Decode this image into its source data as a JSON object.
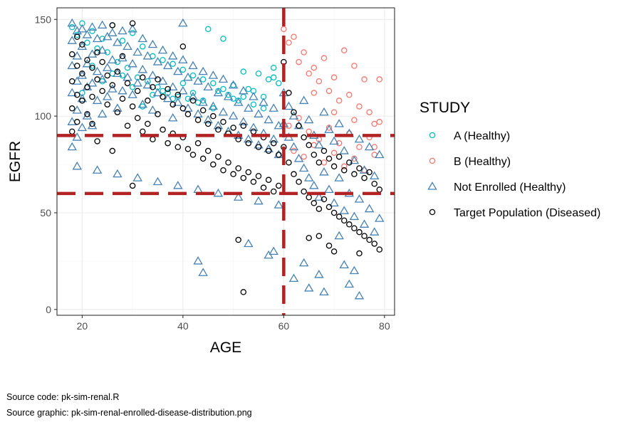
{
  "chart_data": {
    "type": "scatter",
    "title": "",
    "xlabel": "AGE",
    "ylabel": "EGFR",
    "xlim": [
      15,
      82
    ],
    "ylim": [
      -3,
      156
    ],
    "x_ticks": [
      20,
      40,
      60,
      80
    ],
    "y_ticks": [
      0,
      50,
      100,
      150
    ],
    "grid": true,
    "legend": {
      "title": "STUDY",
      "position": "right",
      "entries": [
        {
          "label": "A (Healthy)",
          "marker": "circle",
          "color": "#00BFC4"
        },
        {
          "label": "B (Healthy)",
          "marker": "circle",
          "color": "#F8766D"
        },
        {
          "label": "Not Enrolled (Healthy)",
          "marker": "triangle",
          "color": "#4682B4"
        },
        {
          "label": "Target Population (Diseased)",
          "marker": "circle",
          "color": "#000000"
        }
      ]
    },
    "reference_lines": [
      {
        "orientation": "horizontal",
        "value": 90,
        "style": "dashed",
        "color": "#B22222"
      },
      {
        "orientation": "horizontal",
        "value": 60,
        "style": "dashed",
        "color": "#B22222"
      },
      {
        "orientation": "vertical",
        "value": 60,
        "style": "dashed",
        "color": "#B22222"
      }
    ],
    "series": [
      {
        "name": "A (Healthy)",
        "x": [
          18,
          19,
          20,
          21,
          22,
          23,
          24,
          25,
          26,
          27,
          28,
          29,
          30,
          31,
          32,
          33,
          34,
          35,
          36,
          37,
          38,
          39,
          40,
          41,
          42,
          43,
          44,
          45,
          46,
          47,
          48,
          49,
          50,
          51,
          52,
          53,
          54,
          55,
          56,
          57,
          58,
          59,
          20,
          24,
          28,
          32,
          36,
          40,
          44,
          48,
          52,
          56,
          22,
          26,
          30,
          34,
          38,
          42,
          46,
          50,
          54,
          58
        ],
        "y": [
          146,
          142,
          148,
          138,
          144,
          135,
          140,
          133,
          147,
          128,
          139,
          125,
          143,
          120,
          136,
          118,
          131,
          115,
          129,
          112,
          127,
          110,
          124,
          109,
          121,
          107,
          119,
          145,
          117,
          113,
          140,
          111,
          116,
          108,
          123,
          114,
          106,
          122,
          110,
          119,
          125,
          117,
          112,
          118,
          121,
          105,
          113,
          117,
          108,
          114,
          110,
          104,
          126,
          122,
          115,
          111,
          109,
          112,
          104,
          109,
          113,
          120
        ]
      },
      {
        "name": "B (Healthy)",
        "x": [
          60,
          61,
          62,
          63,
          64,
          65,
          66,
          67,
          68,
          69,
          70,
          71,
          72,
          73,
          74,
          75,
          76,
          77,
          78,
          79,
          61,
          63,
          65,
          67,
          69,
          71,
          73,
          75,
          77,
          79,
          62,
          64,
          66,
          68,
          70,
          72,
          74,
          76,
          78,
          66,
          70,
          74,
          78
        ],
        "y": [
          145,
          138,
          141,
          128,
          133,
          122,
          125,
          118,
          130,
          113,
          120,
          108,
          134,
          111,
          126,
          105,
          119,
          102,
          96,
          119,
          95,
          99,
          92,
          88,
          94,
          86,
          91,
          84,
          89,
          97,
          82,
          79,
          85,
          76,
          81,
          74,
          78,
          72,
          80,
          112,
          102,
          98,
          84
        ]
      },
      {
        "name": "Not Enrolled (Healthy)",
        "x": [
          18,
          18,
          18,
          18,
          18,
          18,
          19,
          19,
          19,
          19,
          19,
          20,
          20,
          20,
          20,
          20,
          21,
          21,
          21,
          21,
          22,
          22,
          22,
          22,
          23,
          23,
          23,
          24,
          24,
          24,
          24,
          25,
          25,
          25,
          26,
          26,
          26,
          27,
          27,
          27,
          28,
          28,
          28,
          29,
          29,
          30,
          30,
          30,
          31,
          31,
          32,
          32,
          32,
          33,
          33,
          34,
          34,
          34,
          35,
          35,
          36,
          36,
          37,
          37,
          38,
          38,
          38,
          39,
          39,
          40,
          40,
          40,
          41,
          41,
          42,
          42,
          43,
          43,
          44,
          44,
          45,
          45,
          46,
          46,
          47,
          47,
          48,
          48,
          49,
          49,
          50,
          50,
          51,
          51,
          52,
          52,
          53,
          53,
          54,
          54,
          55,
          55,
          56,
          56,
          57,
          57,
          58,
          58,
          59,
          59,
          19,
          23,
          27,
          31,
          35,
          39,
          43,
          47,
          51,
          55,
          59,
          60,
          60,
          61,
          61,
          62,
          62,
          63,
          63,
          64,
          64,
          65,
          65,
          66,
          66,
          67,
          67,
          68,
          68,
          69,
          69,
          70,
          70,
          71,
          71,
          72,
          72,
          73,
          73,
          74,
          74,
          75,
          75,
          76,
          76,
          77,
          77,
          78,
          78,
          79,
          79,
          43,
          44,
          53,
          57,
          58,
          62,
          64,
          65,
          67,
          68,
          71,
          72,
          73,
          74,
          75
        ],
        "y": [
          148,
          139,
          126,
          112,
          97,
          84,
          144,
          131,
          118,
          103,
          89,
          145,
          136,
          121,
          109,
          94,
          142,
          127,
          115,
          100,
          146,
          132,
          117,
          95,
          140,
          123,
          108,
          147,
          134,
          119,
          101,
          141,
          125,
          110,
          143,
          129,
          114,
          138,
          122,
          104,
          144,
          130,
          113,
          136,
          120,
          145,
          127,
          111,
          133,
          117,
          140,
          124,
          106,
          131,
          116,
          137,
          121,
          103,
          128,
          112,
          134,
          118,
          126,
          109,
          131,
          115,
          99,
          123,
          107,
          148,
          129,
          113,
          120,
          104,
          126,
          110,
          118,
          101,
          123,
          107,
          115,
          98,
          121,
          105,
          112,
          95,
          119,
          102,
          110,
          92,
          116,
          100,
          107,
          90,
          113,
          97,
          104,
          88,
          110,
          94,
          101,
          85,
          107,
          91,
          98,
          83,
          104,
          88,
          95,
          80,
          74,
          72,
          70,
          68,
          66,
          64,
          62,
          60,
          58,
          56,
          54,
          112,
          96,
          105,
          89,
          100,
          84,
          95,
          78,
          108,
          73,
          98,
          68,
          90,
          64,
          85,
          58,
          102,
          71,
          93,
          62,
          87,
          55,
          96,
          68,
          82,
          51,
          91,
          60,
          77,
          48,
          88,
          57,
          72,
          44,
          84,
          52,
          69,
          40,
          80,
          47,
          25,
          19,
          34,
          28,
          30,
          16,
          24,
          11,
          18,
          9,
          38,
          23,
          13,
          20,
          7
        ]
      },
      {
        "name": "Target Population (Diseased)",
        "x": [
          18,
          18,
          18,
          18,
          19,
          19,
          19,
          19,
          20,
          20,
          20,
          21,
          21,
          21,
          22,
          22,
          22,
          23,
          23,
          23,
          24,
          24,
          25,
          25,
          26,
          26,
          27,
          27,
          28,
          28,
          29,
          29,
          30,
          30,
          31,
          31,
          32,
          32,
          33,
          33,
          34,
          34,
          35,
          35,
          36,
          36,
          37,
          37,
          38,
          38,
          39,
          39,
          40,
          40,
          41,
          41,
          42,
          42,
          43,
          43,
          44,
          44,
          45,
          45,
          46,
          46,
          47,
          47,
          48,
          48,
          49,
          49,
          50,
          50,
          51,
          51,
          52,
          52,
          53,
          53,
          54,
          54,
          55,
          55,
          56,
          56,
          57,
          57,
          58,
          58,
          59,
          59,
          60,
          60,
          61,
          61,
          62,
          62,
          63,
          63,
          64,
          64,
          65,
          65,
          66,
          66,
          67,
          67,
          68,
          68,
          69,
          69,
          70,
          70,
          71,
          71,
          72,
          72,
          73,
          73,
          74,
          74,
          75,
          75,
          76,
          76,
          77,
          77,
          78,
          78,
          79,
          79,
          26,
          30,
          40,
          51,
          52,
          65,
          67,
          69,
          70,
          75
        ],
        "y": [
          132,
          118,
          104,
          92,
          141,
          126,
          111,
          97,
          137,
          122,
          108,
          129,
          115,
          101,
          125,
          110,
          96,
          133,
          119,
          87,
          128,
          113,
          121,
          106,
          147,
          116,
          102,
          123,
          109,
          131,
          95,
          117,
          148,
          105,
          113,
          99,
          120,
          92,
          108,
          96,
          115,
          88,
          119,
          101,
          110,
          93,
          114,
          86,
          106,
          91,
          111,
          84,
          104,
          89,
          101,
          83,
          108,
          80,
          98,
          86,
          103,
          78,
          96,
          82,
          100,
          75,
          93,
          79,
          97,
          72,
          91,
          76,
          94,
          70,
          88,
          73,
          95,
          68,
          86,
          71,
          92,
          66,
          84,
          69,
          89,
          63,
          82,
          67,
          86,
          61,
          80,
          64,
          128,
          84,
          112,
          76,
          102,
          70,
          95,
          66,
          89,
          61,
          85,
          58,
          80,
          55,
          76,
          52,
          82,
          57,
          78,
          53,
          74,
          50,
          79,
          48,
          72,
          46,
          76,
          44,
          70,
          42,
          73,
          40,
          68,
          38,
          71,
          36,
          65,
          34,
          62,
          31,
          82,
          64,
          136,
          36,
          9,
          37,
          38,
          33,
          30,
          29
        ]
      }
    ]
  },
  "caption": {
    "line1": "Source code: pk-sim-renal.R",
    "line2": "Source graphic: pk-sim-renal-enrolled-disease-distribution.png"
  }
}
